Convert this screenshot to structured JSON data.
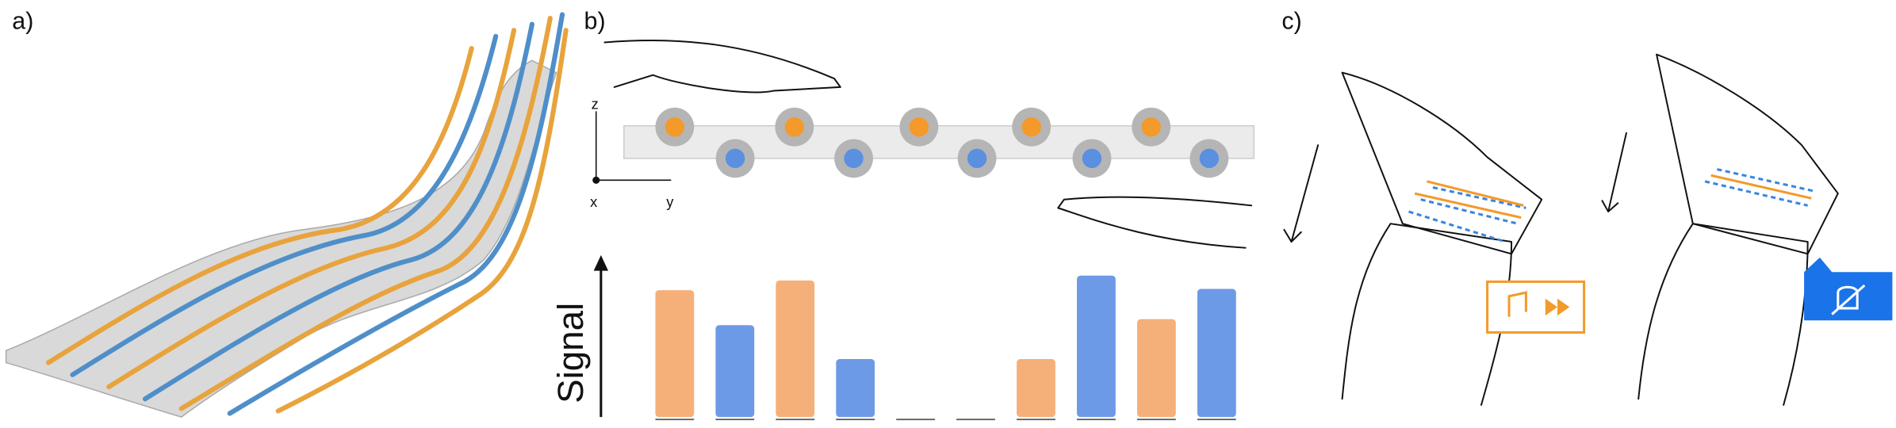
{
  "panels": {
    "a": "a)",
    "b": "b)",
    "c": "c)"
  },
  "axes3d": {
    "z": "z",
    "x": "x",
    "y": "y"
  },
  "chart_data": {
    "type": "bar",
    "ylabel": "Signal",
    "values": [
      105,
      76,
      113,
      48,
      0,
      0,
      48,
      117,
      81,
      106
    ],
    "colors": [
      "#f5b07a",
      "#6d9ae6",
      "#f5b07a",
      "#6d9ae6",
      "#f5b07a",
      "#6d9ae6",
      "#f5b07a",
      "#6d9ae6",
      "#f5b07a",
      "#6d9ae6"
    ],
    "ylim": [
      0,
      130
    ]
  }
}
